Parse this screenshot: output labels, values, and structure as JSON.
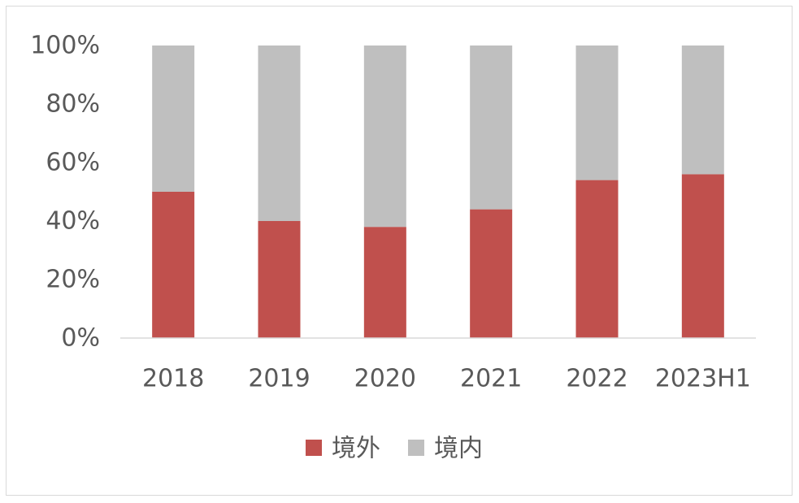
{
  "chart_data": {
    "type": "bar",
    "stacked": true,
    "percent_stacked": true,
    "categories": [
      "2018",
      "2019",
      "2020",
      "2021",
      "2022",
      "2023H1"
    ],
    "series": [
      {
        "name": "境外",
        "values": [
          50,
          40,
          38,
          44,
          54,
          56
        ],
        "color": "#c0504d"
      },
      {
        "name": "境内",
        "values": [
          50,
          60,
          62,
          56,
          46,
          44
        ],
        "color": "#bfbfbf"
      }
    ],
    "ylim": [
      0,
      100
    ],
    "yticks": [
      "0%",
      "20%",
      "40%",
      "60%",
      "80%",
      "100%"
    ],
    "grid": false,
    "legend_position": "bottom"
  }
}
